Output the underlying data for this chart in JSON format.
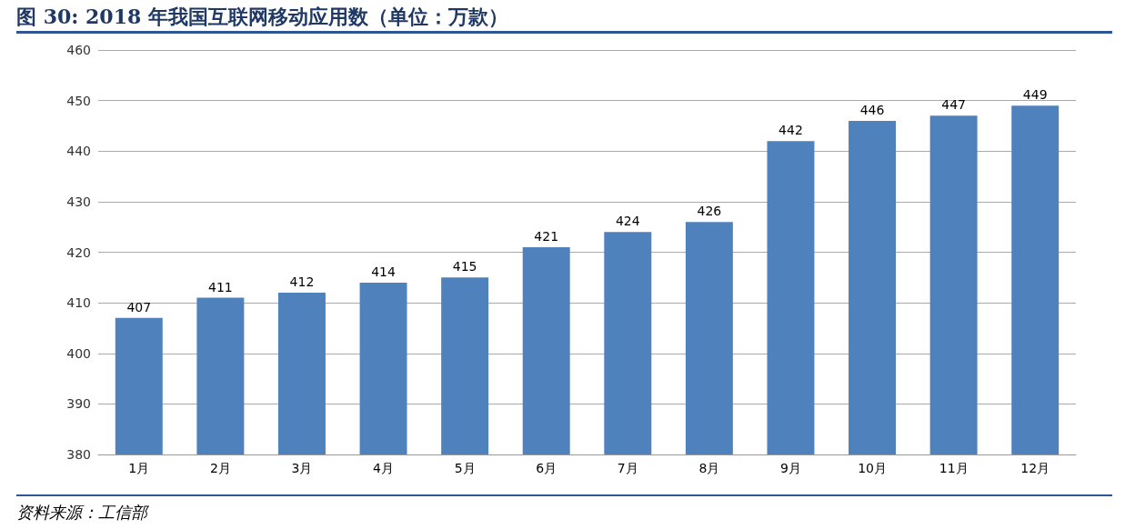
{
  "chart_data": {
    "type": "bar",
    "title": "图 30:  2018 年我国互联网移动应用数（单位：万款）",
    "categories": [
      "1月",
      "2月",
      "3月",
      "4月",
      "5月",
      "6月",
      "7月",
      "8月",
      "9月",
      "10月",
      "11月",
      "12月"
    ],
    "values": [
      407,
      411,
      412,
      414,
      415,
      421,
      424,
      426,
      442,
      446,
      447,
      449
    ],
    "color": "#4f81bd",
    "ylim": [
      380,
      460
    ],
    "yticks": [
      380,
      390,
      400,
      410,
      420,
      430,
      440,
      450,
      460
    ],
    "grid": "y",
    "data_labels": true,
    "annotations": [
      "资料来源：工信部"
    ]
  }
}
